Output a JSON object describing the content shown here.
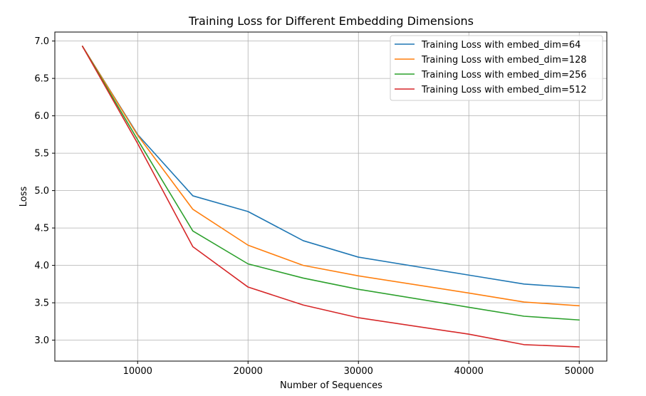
{
  "chart_data": {
    "type": "line",
    "title": "Training Loss for Different Embedding Dimensions",
    "xlabel": "Number of Sequences",
    "ylabel": "Loss",
    "x": [
      5000,
      10000,
      15000,
      20000,
      25000,
      30000,
      40000,
      45000,
      50000
    ],
    "xlim": [
      2500,
      52500
    ],
    "ylim": [
      2.72,
      7.12
    ],
    "xticks": [
      10000,
      20000,
      30000,
      40000,
      50000
    ],
    "yticks": [
      3.0,
      3.5,
      4.0,
      4.5,
      5.0,
      5.5,
      6.0,
      6.5,
      7.0
    ],
    "grid": true,
    "legend_position": "top-right",
    "series": [
      {
        "name": "Training Loss with embed_dim=64",
        "color": "#1f77b4",
        "values": [
          6.93,
          5.75,
          4.93,
          4.72,
          4.33,
          4.11,
          3.87,
          3.75,
          3.7
        ]
      },
      {
        "name": "Training Loss with embed_dim=128",
        "color": "#ff7f0e",
        "values": [
          6.93,
          5.74,
          4.75,
          4.27,
          4.0,
          3.86,
          3.63,
          3.51,
          3.46
        ]
      },
      {
        "name": "Training Loss with embed_dim=256",
        "color": "#2ca02c",
        "values": [
          6.93,
          5.68,
          4.46,
          4.02,
          3.83,
          3.68,
          3.44,
          3.32,
          3.27
        ]
      },
      {
        "name": "Training Loss with embed_dim=512",
        "color": "#d62728",
        "values": [
          6.93,
          5.63,
          4.25,
          3.71,
          3.47,
          3.3,
          3.08,
          2.94,
          2.91
        ]
      }
    ]
  }
}
